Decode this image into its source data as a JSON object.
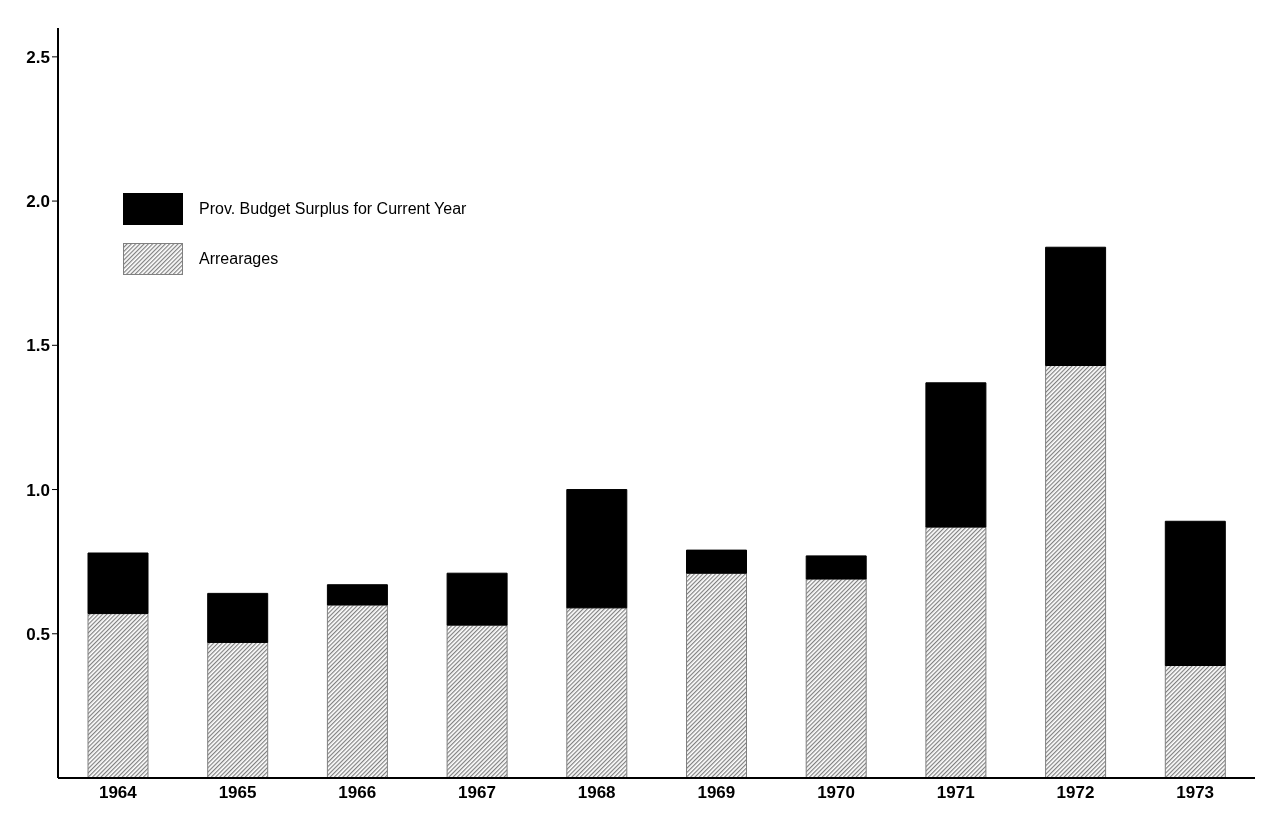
{
  "chart_data": {
    "type": "bar",
    "stacked": true,
    "categories": [
      "1964",
      "1965",
      "1966",
      "1967",
      "1968",
      "1969",
      "1970",
      "1971",
      "1972",
      "1973"
    ],
    "series": [
      {
        "name": "Arrearages",
        "color": "#808080",
        "values": [
          0.57,
          0.47,
          0.6,
          0.53,
          0.59,
          0.71,
          0.69,
          0.87,
          1.43,
          0.39
        ]
      },
      {
        "name": "Prov. Budget Surplus for Current Year",
        "color": "#000000",
        "values": [
          0.21,
          0.17,
          0.07,
          0.18,
          0.41,
          0.08,
          0.08,
          0.5,
          0.41,
          0.5
        ]
      }
    ],
    "ylim": [
      0,
      2.6
    ],
    "yticks": [
      {
        "value": 0.5,
        "label": "0.5"
      },
      {
        "value": 1,
        "label": "1.0"
      },
      {
        "value": 1.5,
        "label": "1.5"
      },
      {
        "value": 2,
        "label": "2.0"
      },
      {
        "value": 2.5,
        "label": "2.5"
      }
    ],
    "grid": false,
    "legend": "top left"
  }
}
